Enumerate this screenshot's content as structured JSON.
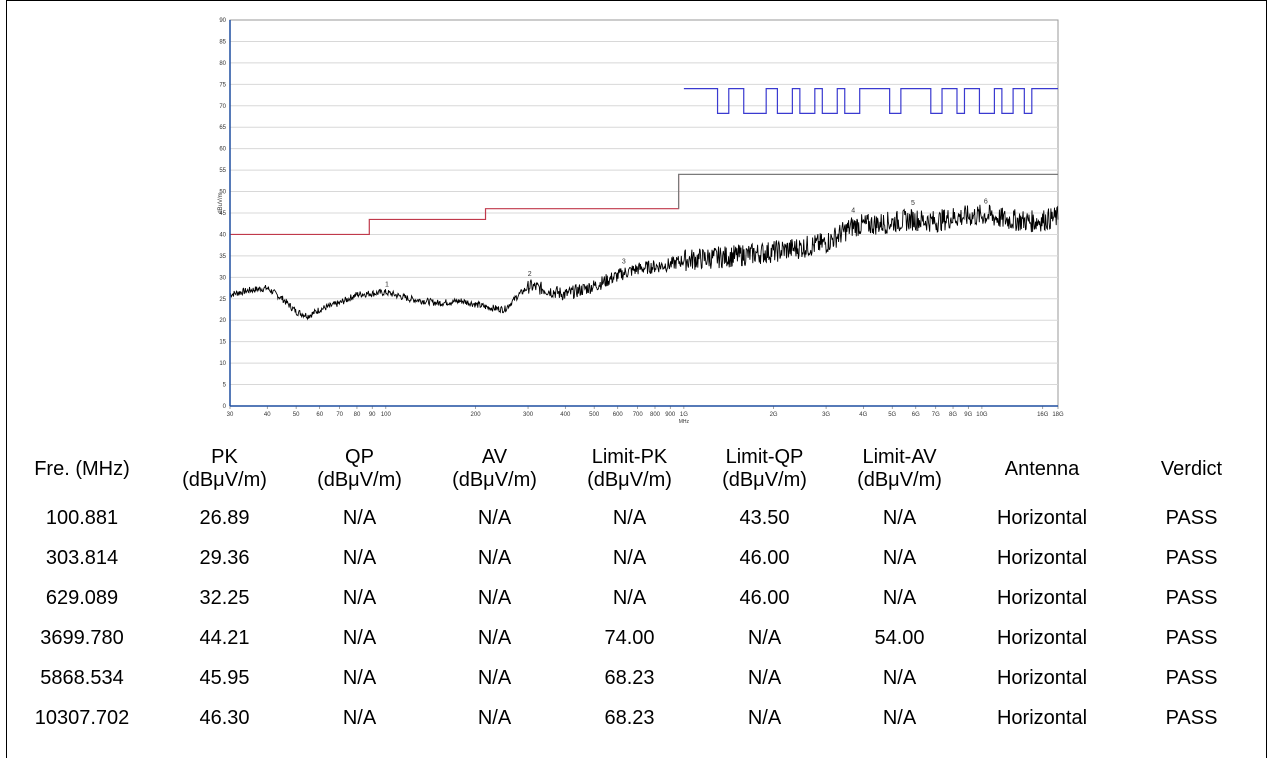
{
  "chart_data": {
    "type": "line",
    "x_scale": "log",
    "xlim": [
      30,
      18000
    ],
    "ylim": [
      0,
      90
    ],
    "ylabel": "dBuV/m",
    "xlabel": "MHz",
    "y_ticks": [
      "0",
      "5",
      "10",
      "15",
      "20",
      "25",
      "30",
      "35",
      "40",
      "45",
      "50",
      "55",
      "60",
      "65",
      "70",
      "75",
      "80",
      "85",
      "90"
    ],
    "x_ticks": [
      {
        "v": 30,
        "label": "30"
      },
      {
        "v": 40,
        "label": "40"
      },
      {
        "v": 50,
        "label": "50"
      },
      {
        "v": 60,
        "label": "60"
      },
      {
        "v": 70,
        "label": "70"
      },
      {
        "v": 80,
        "label": "80"
      },
      {
        "v": 90,
        "label": "90"
      },
      {
        "v": 100,
        "label": "100"
      },
      {
        "v": 200,
        "label": "200"
      },
      {
        "v": 300,
        "label": "300"
      },
      {
        "v": 400,
        "label": "400"
      },
      {
        "v": 500,
        "label": "500"
      },
      {
        "v": 600,
        "label": "600"
      },
      {
        "v": 700,
        "label": "700"
      },
      {
        "v": 800,
        "label": "800"
      },
      {
        "v": 900,
        "label": "900"
      },
      {
        "v": 1000,
        "label": "1G"
      },
      {
        "v": 2000,
        "label": "2G"
      },
      {
        "v": 3000,
        "label": "3G"
      },
      {
        "v": 4000,
        "label": "4G"
      },
      {
        "v": 5000,
        "label": "5G"
      },
      {
        "v": 6000,
        "label": "6G"
      },
      {
        "v": 7000,
        "label": "7G"
      },
      {
        "v": 8000,
        "label": "8G"
      },
      {
        "v": 9000,
        "label": "9G"
      },
      {
        "v": 10000,
        "label": "10G"
      },
      {
        "v": 16000,
        "label": "16G"
      },
      {
        "v": 18000,
        "label": "18G"
      }
    ],
    "qp_limit": [
      {
        "x": 30,
        "y": 40
      },
      {
        "x": 88,
        "y": 40
      },
      {
        "x": 88,
        "y": 43.5
      },
      {
        "x": 216,
        "y": 43.5
      },
      {
        "x": 216,
        "y": 46
      },
      {
        "x": 960,
        "y": 46
      },
      {
        "x": 960,
        "y": 54
      },
      {
        "x": 18000,
        "y": 54
      }
    ],
    "pk_limit_range": [
      1000,
      18000
    ],
    "pk_limit_high": 74.0,
    "pk_limit_low": 68.23,
    "trace_anchors": [
      [
        30,
        26
      ],
      [
        35,
        27
      ],
      [
        40,
        27.5
      ],
      [
        45,
        25
      ],
      [
        50,
        22
      ],
      [
        55,
        21
      ],
      [
        60,
        22.5
      ],
      [
        70,
        24
      ],
      [
        80,
        26
      ],
      [
        100,
        26.5
      ],
      [
        120,
        25
      ],
      [
        150,
        24
      ],
      [
        180,
        24.5
      ],
      [
        220,
        23
      ],
      [
        250,
        22.5
      ],
      [
        280,
        26
      ],
      [
        303.8,
        28
      ],
      [
        350,
        27
      ],
      [
        400,
        26
      ],
      [
        500,
        28
      ],
      [
        629,
        31
      ],
      [
        700,
        32
      ],
      [
        900,
        33
      ],
      [
        1000,
        34
      ],
      [
        1500,
        35
      ],
      [
        2000,
        36
      ],
      [
        2500,
        37
      ],
      [
        3000,
        38
      ],
      [
        3700,
        42
      ],
      [
        4500,
        42.5
      ],
      [
        5868,
        43.5
      ],
      [
        7000,
        43
      ],
      [
        8000,
        44
      ],
      [
        10307,
        44.5
      ],
      [
        12000,
        43.5
      ],
      [
        15000,
        43
      ],
      [
        18000,
        44
      ]
    ],
    "markers": [
      {
        "label": "1",
        "x": 100.881,
        "y": 26.89
      },
      {
        "label": "2",
        "x": 303.814,
        "y": 29.36
      },
      {
        "label": "3",
        "x": 629.089,
        "y": 32.25
      },
      {
        "label": "4",
        "x": 3699.78,
        "y": 44.21
      },
      {
        "label": "5",
        "x": 5868.534,
        "y": 45.95
      },
      {
        "label": "6",
        "x": 10307.702,
        "y": 46.3
      }
    ]
  },
  "table": {
    "headers": [
      [
        "Fre. (MHz)"
      ],
      [
        "PK",
        "(dBμV/m)"
      ],
      [
        "QP",
        "(dBμV/m)"
      ],
      [
        "AV",
        "(dBμV/m)"
      ],
      [
        "Limit-PK",
        "(dBμV/m)"
      ],
      [
        "Limit-QP",
        "(dBμV/m)"
      ],
      [
        "Limit-AV",
        "(dBμV/m)"
      ],
      [
        "Antenna"
      ],
      [
        "Verdict"
      ]
    ],
    "rows": [
      [
        "100.881",
        "26.89",
        "N/A",
        "N/A",
        "N/A",
        "43.50",
        "N/A",
        "Horizontal",
        "PASS"
      ],
      [
        "303.814",
        "29.36",
        "N/A",
        "N/A",
        "N/A",
        "46.00",
        "N/A",
        "Horizontal",
        "PASS"
      ],
      [
        "629.089",
        "32.25",
        "N/A",
        "N/A",
        "N/A",
        "46.00",
        "N/A",
        "Horizontal",
        "PASS"
      ],
      [
        "3699.780",
        "44.21",
        "N/A",
        "N/A",
        "74.00",
        "N/A",
        "54.00",
        "Horizontal",
        "PASS"
      ],
      [
        "5868.534",
        "45.95",
        "N/A",
        "N/A",
        "68.23",
        "N/A",
        "N/A",
        "Horizontal",
        "PASS"
      ],
      [
        "10307.702",
        "46.30",
        "N/A",
        "N/A",
        "68.23",
        "N/A",
        "N/A",
        "Horizontal",
        "PASS"
      ]
    ]
  },
  "colors": {
    "trace": "#000000",
    "qp_limit_low": "#c0394b",
    "qp_limit_high": "#7a7a7a",
    "pk_limit": "#3a3ad0",
    "axis": "#1f4fa0",
    "grid": "#d8d8d8"
  }
}
